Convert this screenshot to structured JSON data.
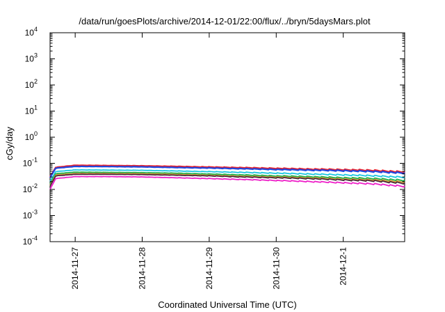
{
  "chart_data": {
    "type": "line",
    "title": "/data/run/goesPlots/archive/2014-12-01/22:00/flux/../bryn/5daysMars.plot",
    "xlabel": "Coordinated Universal Time (UTC)",
    "ylabel": "cGy/day",
    "yscale": "log",
    "ylim": [
      0.0001,
      10000
    ],
    "xlim": [
      "2014-11-26T15:00",
      "2014-12-01T22:00"
    ],
    "grid": false,
    "legend": "none",
    "y_ticks": [
      {
        "base": "10",
        "exp": "-4",
        "value": 0.0001
      },
      {
        "base": "10",
        "exp": "-3",
        "value": 0.001
      },
      {
        "base": "10",
        "exp": "-2",
        "value": 0.01
      },
      {
        "base": "10",
        "exp": "-1",
        "value": 0.1
      },
      {
        "base": "10",
        "exp": "0",
        "value": 1
      },
      {
        "base": "10",
        "exp": "1",
        "value": 10
      },
      {
        "base": "10",
        "exp": "2",
        "value": 100
      },
      {
        "base": "10",
        "exp": "3",
        "value": 1000
      },
      {
        "base": "10",
        "exp": "4",
        "value": 10000
      }
    ],
    "x_ticks": [
      {
        "label": "2014-11-27",
        "value": "2014-11-27T00:00"
      },
      {
        "label": "2014-11-28",
        "value": "2014-11-28T00:00"
      },
      {
        "label": "2014-11-29",
        "value": "2014-11-29T00:00"
      },
      {
        "label": "2014-11-30",
        "value": "2014-11-30T00:00"
      },
      {
        "label": "2014-12-1",
        "value": "2014-12-01T00:00"
      }
    ],
    "x": [
      "2014-11-26T15:00",
      "2014-11-26T17:00",
      "2014-11-27T00:00",
      "2014-11-27T12:00",
      "2014-11-28T00:00",
      "2014-11-28T12:00",
      "2014-11-29T00:00",
      "2014-11-29T12:00",
      "2014-11-30T00:00",
      "2014-11-30T12:00",
      "2014-12-01T00:00",
      "2014-12-01T12:00",
      "2014-12-01T22:00"
    ],
    "series": [
      {
        "color": "#e8212d",
        "values": [
          0.03,
          0.07,
          0.084,
          0.082,
          0.08,
          0.076,
          0.072,
          0.068,
          0.064,
          0.06,
          0.057,
          0.053,
          0.046
        ]
      },
      {
        "color": "#1f47e0",
        "values": [
          0.028,
          0.065,
          0.076,
          0.075,
          0.073,
          0.069,
          0.066,
          0.062,
          0.058,
          0.055,
          0.052,
          0.048,
          0.042
        ]
      },
      {
        "color": "#19c6e0",
        "values": [
          0.02,
          0.048,
          0.056,
          0.055,
          0.054,
          0.051,
          0.048,
          0.045,
          0.042,
          0.039,
          0.036,
          0.033,
          0.029
        ]
      },
      {
        "color": "#1ab04a",
        "values": [
          0.016,
          0.04,
          0.046,
          0.045,
          0.044,
          0.042,
          0.039,
          0.036,
          0.033,
          0.031,
          0.028,
          0.026,
          0.022
        ]
      },
      {
        "color": "#d49a3a",
        "values": [
          0.014,
          0.036,
          0.041,
          0.041,
          0.04,
          0.038,
          0.035,
          0.032,
          0.03,
          0.028,
          0.025,
          0.023,
          0.019
        ]
      },
      {
        "color": "#4a2a3a",
        "values": [
          0.013,
          0.033,
          0.038,
          0.038,
          0.037,
          0.035,
          0.033,
          0.03,
          0.028,
          0.026,
          0.023,
          0.021,
          0.017
        ]
      },
      {
        "color": "#ee1fc8",
        "values": [
          0.01,
          0.026,
          0.031,
          0.031,
          0.03,
          0.028,
          0.026,
          0.024,
          0.022,
          0.02,
          0.018,
          0.016,
          0.013
        ]
      }
    ]
  }
}
